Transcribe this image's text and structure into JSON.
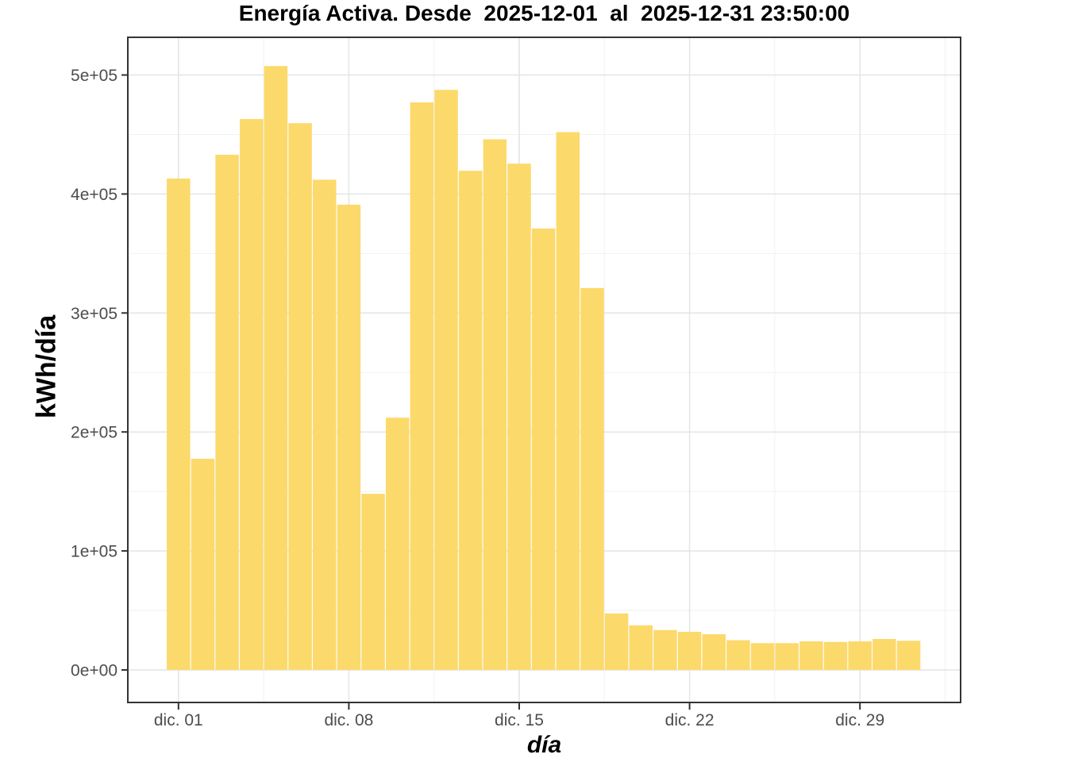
{
  "title": "Energía Activa. Desde  2025-12-01  al  2025-12-31 23:50:00",
  "axes": {
    "x_title": "día",
    "y_title": "kWh/día",
    "x_tick_labels": [
      "dic. 01",
      "dic. 08",
      "dic. 15",
      "dic. 22",
      "dic. 29"
    ],
    "y_tick_labels": [
      "0e+00",
      "1e+05",
      "2e+05",
      "3e+05",
      "4e+05",
      "5e+05"
    ]
  },
  "colors": {
    "bar_fill": "#FCD96B",
    "panel_border": "#333333",
    "grid_major": "#E4E4E4",
    "grid_minor": "#F1F1F1",
    "tick_mark": "#333333",
    "tick_label": "#4D4D4D",
    "title_text": "#000000",
    "background": "#FFFFFF"
  },
  "chart_data": {
    "type": "bar",
    "title": "Energía Activa. Desde  2025-12-01  al  2025-12-31 23:50:00",
    "xlabel": "día",
    "ylabel": "kWh/día",
    "x": [
      "2025-12-01",
      "2025-12-02",
      "2025-12-03",
      "2025-12-04",
      "2025-12-05",
      "2025-12-06",
      "2025-12-07",
      "2025-12-08",
      "2025-12-09",
      "2025-12-10",
      "2025-12-11",
      "2025-12-12",
      "2025-12-13",
      "2025-12-14",
      "2025-12-15",
      "2025-12-16",
      "2025-12-17",
      "2025-12-18",
      "2025-12-19",
      "2025-12-20",
      "2025-12-21",
      "2025-12-22",
      "2025-12-23",
      "2025-12-24",
      "2025-12-25",
      "2025-12-26",
      "2025-12-27",
      "2025-12-28",
      "2025-12-29",
      "2025-12-30",
      "2025-12-31"
    ],
    "values": [
      413000,
      177500,
      433000,
      463000,
      507500,
      459500,
      412000,
      391000,
      148000,
      212000,
      477000,
      487500,
      419500,
      446000,
      425500,
      371000,
      452000,
      321000,
      47500,
      37500,
      33500,
      32000,
      30000,
      25000,
      22500,
      22500,
      24000,
      23500,
      24000,
      26000,
      24500
    ],
    "ylim": [
      0,
      530000
    ],
    "y_tick_values": [
      0,
      100000,
      200000,
      300000,
      400000,
      500000
    ],
    "x_major_tick_days": [
      1,
      8,
      15,
      22,
      29
    ],
    "x_minor_tick_days": [
      4.5,
      11.5,
      18.5,
      25.5,
      32.5
    ],
    "y_minor_tick_values": [
      50000,
      150000,
      250000,
      350000,
      450000
    ],
    "grid": true,
    "legend": false
  }
}
